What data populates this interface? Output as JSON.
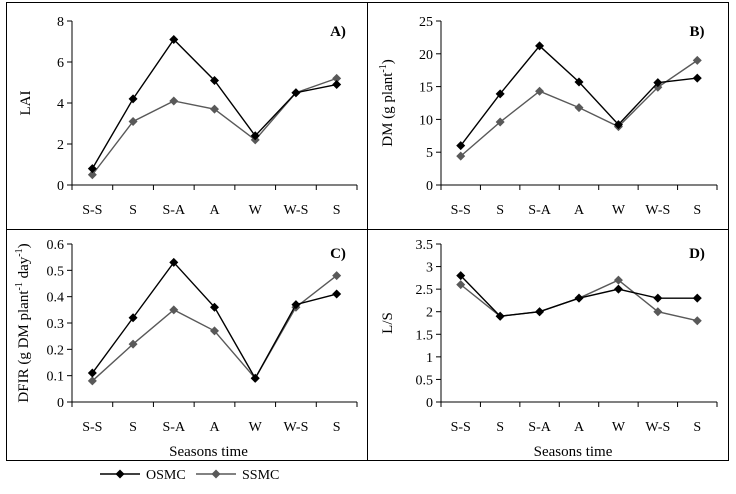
{
  "legend": {
    "items": [
      {
        "name": "OSMC",
        "color": "#000000",
        "marker": "diamond"
      },
      {
        "name": "SSMC",
        "color": "#595959",
        "marker": "diamond"
      }
    ]
  },
  "chart_data": [
    {
      "type": "line",
      "label": "A)",
      "ylabel": "LAI",
      "xlabel": "",
      "categories": [
        "S-S",
        "S",
        "S-A",
        "A",
        "W",
        "W-S",
        "S"
      ],
      "ylim": [
        0,
        8
      ],
      "yticks": [
        "0",
        "2",
        "4",
        "6",
        "8"
      ],
      "series": [
        {
          "name": "OSMC",
          "values": [
            0.8,
            4.2,
            7.1,
            5.1,
            2.4,
            4.5,
            4.9
          ]
        },
        {
          "name": "SSMC",
          "values": [
            0.5,
            3.1,
            4.1,
            3.7,
            2.2,
            4.5,
            5.2
          ]
        }
      ]
    },
    {
      "type": "line",
      "label": "B)",
      "ylabel": "DM (g plant",
      "ylabel_sup": "-1",
      "ylabel_end": ")",
      "xlabel": "",
      "categories": [
        "S-S",
        "S",
        "S-A",
        "A",
        "W",
        "W-S",
        "S"
      ],
      "ylim": [
        0,
        25
      ],
      "yticks": [
        "0",
        "5",
        "10",
        "15",
        "20",
        "25"
      ],
      "series": [
        {
          "name": "OSMC",
          "values": [
            6.0,
            13.9,
            21.2,
            15.7,
            9.2,
            15.6,
            16.3
          ]
        },
        {
          "name": "SSMC",
          "values": [
            4.4,
            9.6,
            14.3,
            11.8,
            8.9,
            14.9,
            19.0
          ]
        }
      ]
    },
    {
      "type": "line",
      "label": "C)",
      "ylabel": "DFIR (g DM plant",
      "ylabel_sup": "-1",
      "ylabel_mid": " day",
      "ylabel_sup2": "-1",
      "ylabel_end": ")",
      "xlabel": "Seasons time",
      "categories": [
        "S-S",
        "S",
        "S-A",
        "A",
        "W",
        "W-S",
        "S"
      ],
      "ylim": [
        0,
        0.6
      ],
      "yticks": [
        "0",
        "0.1",
        "0.2",
        "0.3",
        "0.4",
        "0.5",
        "0.6"
      ],
      "series": [
        {
          "name": "OSMC",
          "values": [
            0.11,
            0.32,
            0.53,
            0.36,
            0.09,
            0.37,
            0.41
          ]
        },
        {
          "name": "SSMC",
          "values": [
            0.08,
            0.22,
            0.35,
            0.27,
            0.09,
            0.36,
            0.48
          ]
        }
      ]
    },
    {
      "type": "line",
      "label": "D)",
      "ylabel": "L/S",
      "xlabel": "Seasons time",
      "categories": [
        "S-S",
        "S",
        "S-A",
        "A",
        "W",
        "W-S",
        "S"
      ],
      "ylim": [
        0,
        3.5
      ],
      "yticks": [
        "0",
        "0.5",
        "1",
        "1.5",
        "2",
        "2.5",
        "3",
        "3.5"
      ],
      "series": [
        {
          "name": "OSMC",
          "values": [
            2.8,
            1.9,
            2.0,
            2.3,
            2.5,
            2.3,
            2.3
          ]
        },
        {
          "name": "SSMC",
          "values": [
            2.6,
            1.9,
            2.0,
            2.3,
            2.7,
            2.0,
            1.8
          ]
        }
      ]
    }
  ]
}
